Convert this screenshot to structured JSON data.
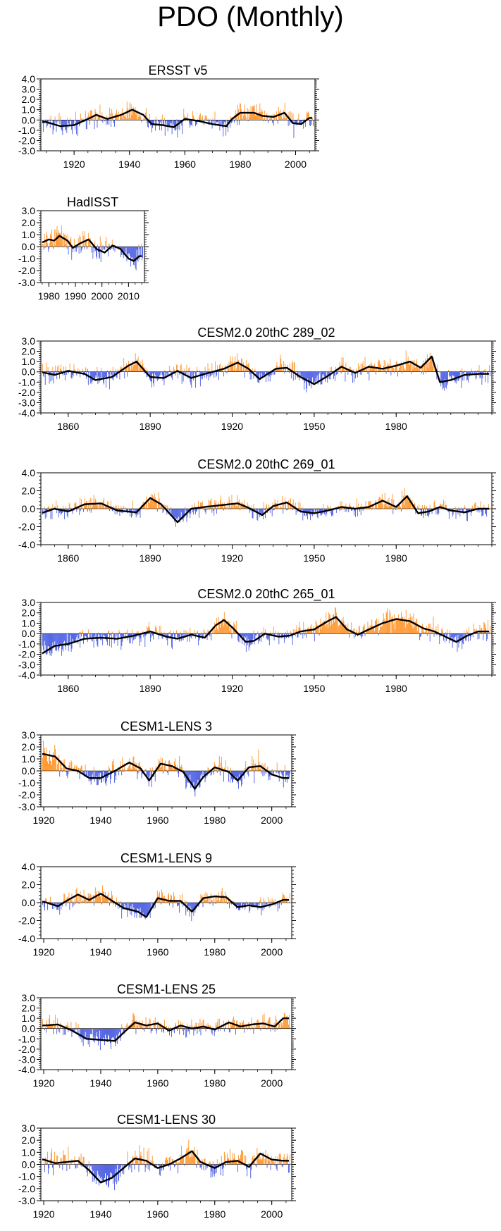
{
  "title": "PDO (Monthly)",
  "colors": {
    "positive": "#ff8c1a",
    "negative": "#3b4fe0",
    "line": "#000000",
    "frame": "#000000"
  },
  "chart_data": [
    {
      "type": "bar",
      "title": "ERSST v5",
      "xlim": [
        1908,
        2007
      ],
      "ylim": [
        -3,
        4
      ],
      "yticks": [
        -3,
        -2,
        -1,
        0,
        1,
        2,
        3,
        4
      ],
      "ytick_labels": [
        "-3.0",
        "-2.0",
        "-1.0",
        "0.0",
        "1.0",
        "2.0",
        "3.0",
        "4.0"
      ],
      "xticks": [
        1920,
        1940,
        1960,
        1980,
        2000
      ],
      "xtick_labels": [
        "1920",
        "1940",
        "1960",
        "1980",
        "2000"
      ],
      "smooth": [
        [
          1910,
          -0.2
        ],
        [
          1915,
          -0.6
        ],
        [
          1920,
          -0.5
        ],
        [
          1925,
          0.1
        ],
        [
          1928,
          0.5
        ],
        [
          1932,
          0.1
        ],
        [
          1937,
          0.5
        ],
        [
          1941,
          1.0
        ],
        [
          1945,
          0.5
        ],
        [
          1948,
          -0.4
        ],
        [
          1952,
          -0.5
        ],
        [
          1956,
          -0.7
        ],
        [
          1960,
          0.1
        ],
        [
          1965,
          -0.1
        ],
        [
          1970,
          -0.4
        ],
        [
          1975,
          -0.6
        ],
        [
          1977,
          0.1
        ],
        [
          1980,
          0.7
        ],
        [
          1985,
          0.7
        ],
        [
          1988,
          0.4
        ],
        [
          1992,
          0.3
        ],
        [
          1996,
          0.7
        ],
        [
          1999,
          -0.3
        ],
        [
          2002,
          -0.4
        ],
        [
          2005,
          0.2
        ]
      ]
    },
    {
      "type": "bar",
      "title": "HadISST",
      "xlim": [
        1977,
        2016
      ],
      "ylim": [
        -3,
        3
      ],
      "yticks": [
        -3,
        -2,
        -1,
        0,
        1,
        2,
        3
      ],
      "ytick_labels": [
        "-3.0",
        "-2.0",
        "-1.0",
        "0.0",
        "1.0",
        "2.0",
        "3.0"
      ],
      "xticks": [
        1980,
        1990,
        2000,
        2010
      ],
      "xtick_labels": [
        "1980",
        "1990",
        "2000",
        "2010"
      ],
      "smooth": [
        [
          1977,
          0.3
        ],
        [
          1980,
          0.6
        ],
        [
          1982,
          0.5
        ],
        [
          1984,
          0.9
        ],
        [
          1987,
          0.5
        ],
        [
          1989,
          -0.1
        ],
        [
          1992,
          0.3
        ],
        [
          1995,
          0.6
        ],
        [
          1998,
          -0.2
        ],
        [
          2001,
          -0.5
        ],
        [
          2004,
          0.1
        ],
        [
          2007,
          -0.2
        ],
        [
          2010,
          -1.0
        ],
        [
          2012,
          -1.2
        ],
        [
          2014,
          -0.8
        ]
      ]
    },
    {
      "type": "bar",
      "title": "CESM2.0 20thC 289_02",
      "xlim": [
        1850,
        2015
      ],
      "ylim": [
        -4,
        3
      ],
      "yticks": [
        -4,
        -3,
        -2,
        -1,
        0,
        1,
        2,
        3
      ],
      "ytick_labels": [
        "-4.0",
        "-3.0",
        "-2.0",
        "-1.0",
        "0.0",
        "1.0",
        "2.0",
        "3.0"
      ],
      "xticks": [
        1860,
        1890,
        1920,
        1950,
        1980
      ],
      "xtick_labels": [
        "1860",
        "1890",
        "1920",
        "1950",
        "1980"
      ],
      "smooth": [
        [
          1850,
          0.0
        ],
        [
          1855,
          -0.3
        ],
        [
          1860,
          0.1
        ],
        [
          1866,
          -0.2
        ],
        [
          1870,
          -0.8
        ],
        [
          1876,
          -0.5
        ],
        [
          1882,
          0.6
        ],
        [
          1885,
          1.0
        ],
        [
          1890,
          -0.5
        ],
        [
          1895,
          -0.6
        ],
        [
          1900,
          0.1
        ],
        [
          1905,
          -0.6
        ],
        [
          1910,
          -0.2
        ],
        [
          1917,
          0.3
        ],
        [
          1922,
          0.9
        ],
        [
          1926,
          0.3
        ],
        [
          1930,
          -0.7
        ],
        [
          1936,
          0.3
        ],
        [
          1940,
          0.4
        ],
        [
          1945,
          -0.5
        ],
        [
          1950,
          -1.2
        ],
        [
          1955,
          -0.4
        ],
        [
          1960,
          0.5
        ],
        [
          1965,
          -0.1
        ],
        [
          1970,
          0.5
        ],
        [
          1975,
          0.3
        ],
        [
          1980,
          0.6
        ],
        [
          1985,
          1.0
        ],
        [
          1989,
          0.4
        ],
        [
          1993,
          1.5
        ],
        [
          1996,
          -1.0
        ],
        [
          2000,
          -0.8
        ],
        [
          2005,
          -0.3
        ],
        [
          2010,
          -0.2
        ]
      ]
    },
    {
      "type": "bar",
      "title": "CESM2.0 20thC 269_01",
      "xlim": [
        1850,
        2015
      ],
      "ylim": [
        -4,
        4
      ],
      "yticks": [
        -4,
        -2,
        0,
        2,
        4
      ],
      "ytick_labels": [
        "-4.0",
        "-2.0",
        "0.0",
        "2.0",
        "4.0"
      ],
      "xticks": [
        1860,
        1890,
        1920,
        1950,
        1980
      ],
      "xtick_labels": [
        "1860",
        "1890",
        "1920",
        "1950",
        "1980"
      ],
      "smooth": [
        [
          1850,
          -0.5
        ],
        [
          1855,
          0.0
        ],
        [
          1860,
          -0.3
        ],
        [
          1866,
          0.5
        ],
        [
          1872,
          0.6
        ],
        [
          1878,
          -0.2
        ],
        [
          1885,
          -0.4
        ],
        [
          1890,
          1.2
        ],
        [
          1894,
          0.5
        ],
        [
          1900,
          -1.5
        ],
        [
          1905,
          0.0
        ],
        [
          1910,
          0.2
        ],
        [
          1916,
          0.4
        ],
        [
          1922,
          0.6
        ],
        [
          1926,
          0.1
        ],
        [
          1931,
          -0.7
        ],
        [
          1935,
          0.3
        ],
        [
          1940,
          0.7
        ],
        [
          1945,
          -0.3
        ],
        [
          1950,
          -0.5
        ],
        [
          1955,
          -0.2
        ],
        [
          1960,
          0.2
        ],
        [
          1965,
          0.0
        ],
        [
          1970,
          0.2
        ],
        [
          1975,
          0.9
        ],
        [
          1980,
          0.2
        ],
        [
          1984,
          1.4
        ],
        [
          1988,
          -0.5
        ],
        [
          1992,
          -0.3
        ],
        [
          1996,
          0.2
        ],
        [
          2000,
          -0.2
        ],
        [
          2005,
          -0.4
        ],
        [
          2010,
          0.0
        ]
      ]
    },
    {
      "type": "bar",
      "title": "CESM2.0 20thC 265_01",
      "xlim": [
        1850,
        2015
      ],
      "ylim": [
        -4,
        3
      ],
      "yticks": [
        -4,
        -3,
        -2,
        -1,
        0,
        1,
        2,
        3
      ],
      "ytick_labels": [
        "-4.0",
        "-3.0",
        "-2.0",
        "-1.0",
        "0.0",
        "1.0",
        "2.0",
        "3.0"
      ],
      "xticks": [
        1860,
        1890,
        1920,
        1950,
        1980
      ],
      "xtick_labels": [
        "1860",
        "1890",
        "1920",
        "1950",
        "1980"
      ],
      "smooth": [
        [
          1850,
          -2.0
        ],
        [
          1855,
          -1.2
        ],
        [
          1860,
          -1.0
        ],
        [
          1866,
          -0.5
        ],
        [
          1872,
          -0.4
        ],
        [
          1878,
          -0.5
        ],
        [
          1884,
          -0.2
        ],
        [
          1890,
          0.2
        ],
        [
          1896,
          -0.3
        ],
        [
          1900,
          -0.5
        ],
        [
          1905,
          -0.1
        ],
        [
          1910,
          -0.4
        ],
        [
          1914,
          0.8
        ],
        [
          1917,
          1.3
        ],
        [
          1920,
          0.6
        ],
        [
          1925,
          -0.8
        ],
        [
          1928,
          -0.7
        ],
        [
          1932,
          0.0
        ],
        [
          1937,
          -0.3
        ],
        [
          1941,
          -0.2
        ],
        [
          1945,
          0.2
        ],
        [
          1950,
          0.4
        ],
        [
          1955,
          1.2
        ],
        [
          1958,
          1.6
        ],
        [
          1962,
          0.4
        ],
        [
          1966,
          -0.1
        ],
        [
          1970,
          0.4
        ],
        [
          1975,
          1.0
        ],
        [
          1980,
          1.4
        ],
        [
          1985,
          1.2
        ],
        [
          1990,
          0.5
        ],
        [
          1994,
          0.2
        ],
        [
          1998,
          -0.3
        ],
        [
          2002,
          -0.8
        ],
        [
          2006,
          -0.2
        ],
        [
          2010,
          0.2
        ]
      ]
    },
    {
      "type": "bar",
      "title": "CESM1-LENS 3",
      "xlim": [
        1919,
        2007
      ],
      "ylim": [
        -3,
        3
      ],
      "yticks": [
        -3,
        -2,
        -1,
        0,
        1,
        2,
        3
      ],
      "ytick_labels": [
        "-3.0",
        "-2.0",
        "-1.0",
        "0.0",
        "1.0",
        "2.0",
        "3.0"
      ],
      "xticks": [
        1920,
        1940,
        1960,
        1980,
        2000
      ],
      "xtick_labels": [
        "1920",
        "1940",
        "1960",
        "1980",
        "2000"
      ],
      "smooth": [
        [
          1920,
          1.4
        ],
        [
          1924,
          1.2
        ],
        [
          1928,
          0.2
        ],
        [
          1932,
          0.0
        ],
        [
          1936,
          -0.6
        ],
        [
          1940,
          -0.6
        ],
        [
          1945,
          0.0
        ],
        [
          1950,
          0.7
        ],
        [
          1954,
          0.2
        ],
        [
          1957,
          -0.8
        ],
        [
          1961,
          0.6
        ],
        [
          1965,
          0.4
        ],
        [
          1969,
          -0.1
        ],
        [
          1973,
          -1.5
        ],
        [
          1976,
          -0.5
        ],
        [
          1980,
          0.3
        ],
        [
          1985,
          -0.1
        ],
        [
          1988,
          -0.8
        ],
        [
          1992,
          0.3
        ],
        [
          1996,
          0.4
        ],
        [
          2000,
          -0.3
        ],
        [
          2004,
          -0.6
        ]
      ]
    },
    {
      "type": "bar",
      "title": "CESM1-LENS 9",
      "xlim": [
        1919,
        2007
      ],
      "ylim": [
        -4,
        4
      ],
      "yticks": [
        -4,
        -2,
        0,
        2,
        4
      ],
      "ytick_labels": [
        "-4.0",
        "-2.0",
        "0.0",
        "2.0",
        "4.0"
      ],
      "xticks": [
        1920,
        1940,
        1960,
        1980,
        2000
      ],
      "xtick_labels": [
        "1920",
        "1940",
        "1960",
        "1980",
        "2000"
      ],
      "smooth": [
        [
          1920,
          0.1
        ],
        [
          1925,
          -0.4
        ],
        [
          1928,
          0.2
        ],
        [
          1932,
          0.9
        ],
        [
          1936,
          0.3
        ],
        [
          1940,
          1.0
        ],
        [
          1944,
          0.2
        ],
        [
          1948,
          -0.6
        ],
        [
          1953,
          -1.0
        ],
        [
          1956,
          -1.6
        ],
        [
          1960,
          0.5
        ],
        [
          1964,
          0.2
        ],
        [
          1968,
          0.2
        ],
        [
          1972,
          -1.0
        ],
        [
          1976,
          0.5
        ],
        [
          1980,
          0.7
        ],
        [
          1984,
          0.6
        ],
        [
          1988,
          -0.5
        ],
        [
          1992,
          -0.3
        ],
        [
          1996,
          -0.5
        ],
        [
          2000,
          -0.2
        ],
        [
          2004,
          0.3
        ]
      ]
    },
    {
      "type": "bar",
      "title": "CESM1-LENS 25",
      "xlim": [
        1919,
        2007
      ],
      "ylim": [
        -4,
        3
      ],
      "yticks": [
        -4,
        -3,
        -2,
        -1,
        0,
        1,
        2,
        3
      ],
      "ytick_labels": [
        "-4.0",
        "-3.0",
        "-2.0",
        "-1.0",
        "0.0",
        "1.0",
        "2.0",
        "3.0"
      ],
      "xticks": [
        1920,
        1940,
        1960,
        1980,
        2000
      ],
      "xtick_labels": [
        "1920",
        "1940",
        "1960",
        "1980",
        "2000"
      ],
      "smooth": [
        [
          1920,
          0.3
        ],
        [
          1925,
          0.4
        ],
        [
          1930,
          -0.2
        ],
        [
          1935,
          -1.0
        ],
        [
          1940,
          -1.1
        ],
        [
          1945,
          -1.2
        ],
        [
          1948,
          -0.4
        ],
        [
          1952,
          0.6
        ],
        [
          1956,
          0.3
        ],
        [
          1960,
          0.5
        ],
        [
          1964,
          -0.2
        ],
        [
          1968,
          0.3
        ],
        [
          1972,
          0.0
        ],
        [
          1976,
          0.2
        ],
        [
          1980,
          -0.1
        ],
        [
          1985,
          0.6
        ],
        [
          1989,
          0.2
        ],
        [
          1993,
          0.4
        ],
        [
          1997,
          0.5
        ],
        [
          2001,
          0.2
        ],
        [
          2004,
          1.0
        ]
      ]
    },
    {
      "type": "bar",
      "title": "CESM1-LENS 30",
      "xlim": [
        1919,
        2007
      ],
      "ylim": [
        -3,
        3
      ],
      "yticks": [
        -3,
        -2,
        -1,
        0,
        1,
        2,
        3
      ],
      "ytick_labels": [
        "-3.0",
        "-2.0",
        "-1.0",
        "0.0",
        "1.0",
        "2.0",
        "3.0"
      ],
      "xticks": [
        1920,
        1940,
        1960,
        1980,
        2000
      ],
      "xtick_labels": [
        "1920",
        "1940",
        "1960",
        "1980",
        "2000"
      ],
      "smooth": [
        [
          1920,
          0.4
        ],
        [
          1924,
          0.1
        ],
        [
          1928,
          0.2
        ],
        [
          1932,
          0.3
        ],
        [
          1936,
          -0.5
        ],
        [
          1940,
          -1.5
        ],
        [
          1944,
          -1.1
        ],
        [
          1948,
          -0.3
        ],
        [
          1952,
          0.5
        ],
        [
          1956,
          0.3
        ],
        [
          1960,
          -0.3
        ],
        [
          1964,
          0.0
        ],
        [
          1968,
          0.5
        ],
        [
          1972,
          1.1
        ],
        [
          1975,
          0.2
        ],
        [
          1980,
          -0.3
        ],
        [
          1984,
          0.2
        ],
        [
          1988,
          0.3
        ],
        [
          1992,
          -0.2
        ],
        [
          1996,
          0.9
        ],
        [
          2000,
          0.4
        ],
        [
          2004,
          0.3
        ]
      ]
    }
  ]
}
